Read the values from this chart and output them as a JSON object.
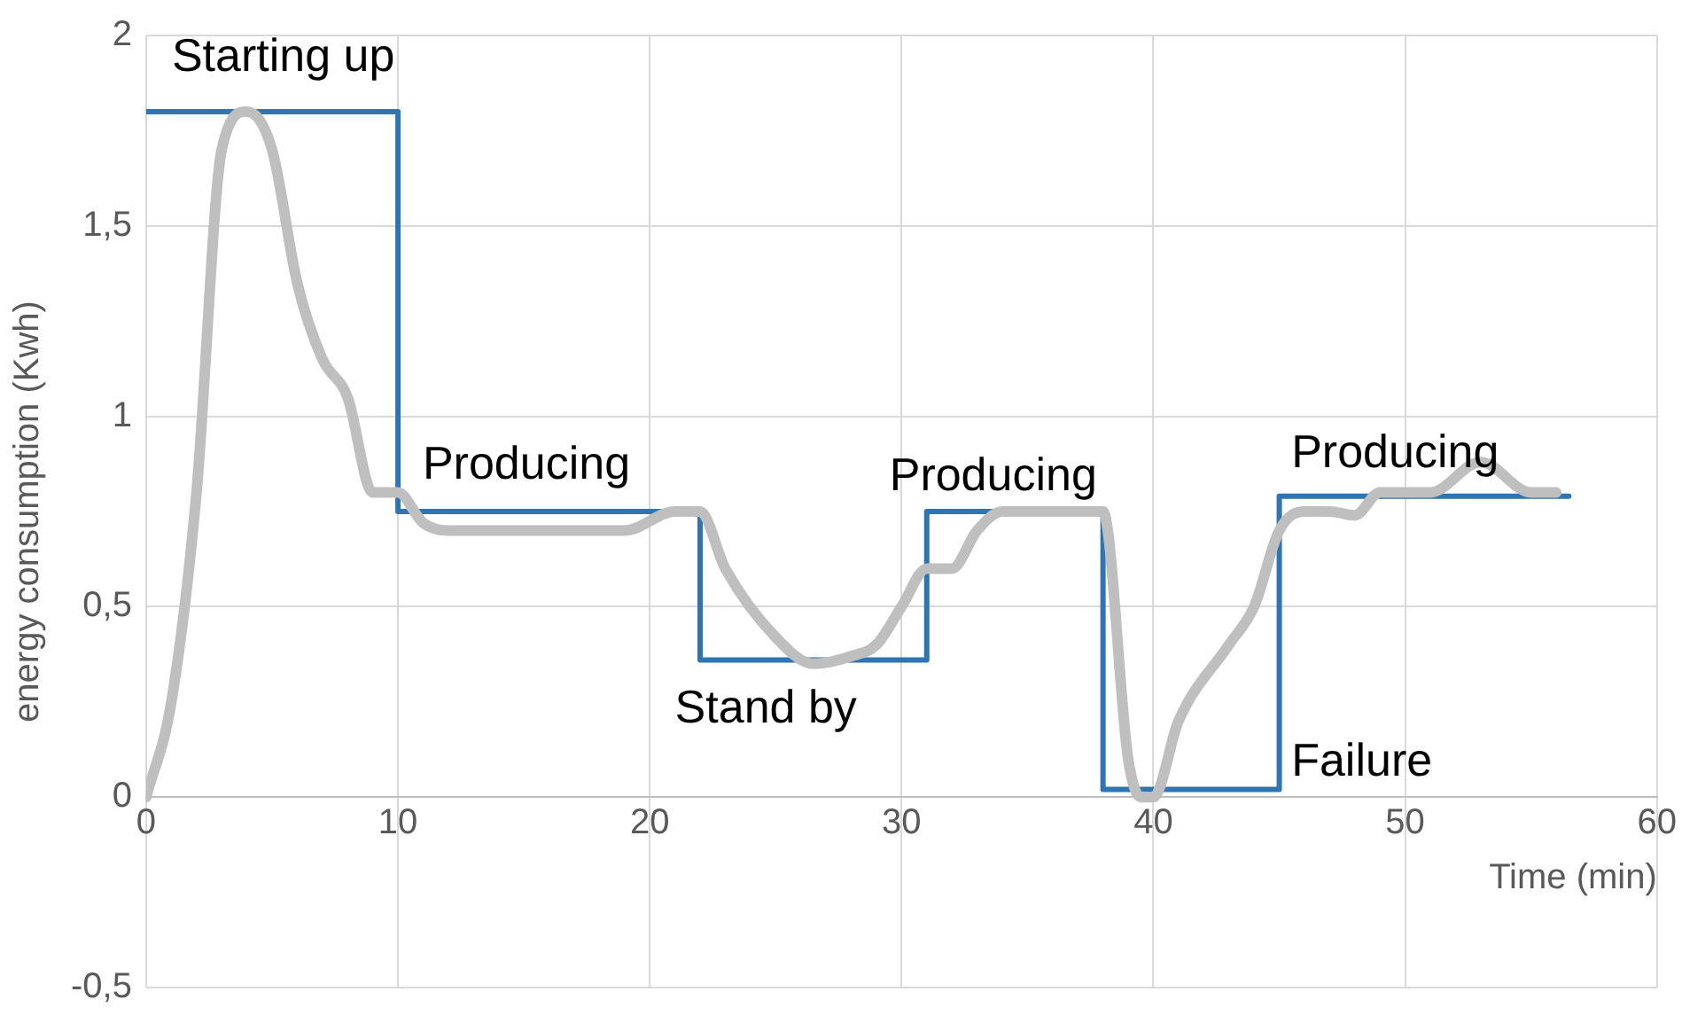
{
  "chart_data": {
    "type": "line",
    "xlabel": "Time (min)",
    "ylabel": "energy consumption (Kwh)",
    "xlim": [
      0,
      60
    ],
    "xticks": [
      0,
      10,
      20,
      30,
      40,
      50,
      60
    ],
    "ylim": [
      -0.5,
      2
    ],
    "yticks": [
      {
        "value": -0.5,
        "label": "-0,5"
      },
      0,
      {
        "value": 0.5,
        "label": "0,5"
      },
      1,
      {
        "value": 1.5,
        "label": "1,5"
      },
      2
    ],
    "grid": true,
    "marker": "none",
    "series": [
      {
        "type": "line",
        "color": "#bfbfbf",
        "x": [
          0,
          1,
          2,
          3,
          4,
          5,
          6,
          7,
          8,
          9,
          10,
          11,
          12,
          15,
          19,
          21,
          22,
          23,
          25,
          26.5,
          28,
          29,
          30,
          31,
          32,
          33,
          34,
          38,
          39,
          39.5,
          40,
          41,
          43,
          44,
          45,
          46,
          47,
          48,
          49,
          51,
          53,
          55,
          56
        ],
        "values": [
          0,
          0.25,
          0.8,
          1.7,
          1.8,
          1.7,
          1.35,
          1.15,
          1.05,
          0.8,
          0.8,
          0.72,
          0.7,
          0.7,
          0.7,
          0.75,
          0.75,
          0.6,
          0.42,
          0.35,
          0.37,
          0.4,
          0.5,
          0.6,
          0.6,
          0.7,
          0.75,
          0.75,
          0.1,
          0,
          0,
          0.2,
          0.4,
          0.5,
          0.7,
          0.75,
          0.75,
          0.74,
          0.8,
          0.8,
          0.88,
          0.8,
          0.8
        ]
      },
      {
        "type": "step",
        "color": "#2e75b6",
        "x": [
          0,
          10,
          22,
          31,
          38,
          45,
          56.5
        ],
        "values": [
          1.8,
          0.75,
          0.36,
          0.75,
          0.02,
          0.79,
          0.79
        ]
      }
    ],
    "annotations": [
      "Starting up",
      "Producing",
      "Stand by",
      "Producing",
      "Failure",
      "Producing"
    ]
  }
}
